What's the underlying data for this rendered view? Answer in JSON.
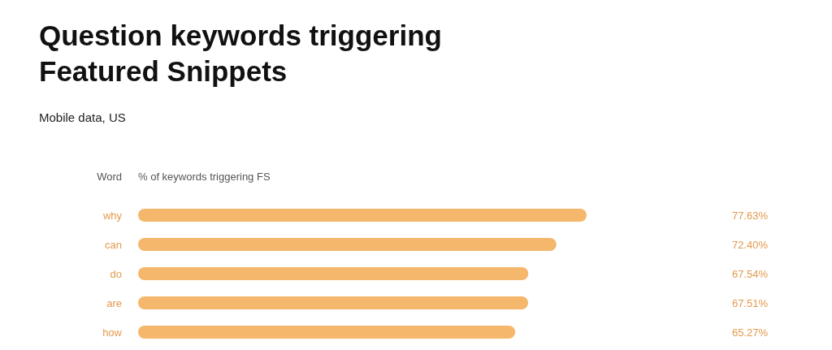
{
  "chart_data": {
    "type": "bar",
    "orientation": "horizontal",
    "title": "Question keywords triggering\nFeatured Snippets",
    "subtitle": "Mobile data, US",
    "ylabel": "Word",
    "xlabel": "% of keywords triggering FS",
    "categories": [
      "why",
      "can",
      "do",
      "are",
      "how"
    ],
    "values": [
      77.63,
      72.4,
      67.54,
      67.51,
      65.27
    ],
    "value_labels": [
      "77.63%",
      "72.40%",
      "67.54%",
      "67.51%",
      "65.27%"
    ],
    "color": "#f5b76c"
  }
}
